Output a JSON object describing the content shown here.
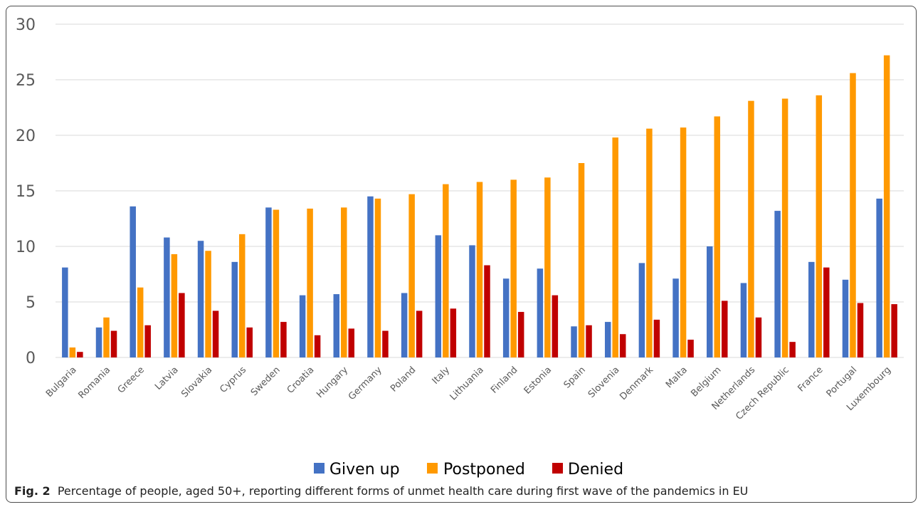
{
  "chart_data": {
    "type": "bar",
    "categories": [
      "Bulgaria",
      "Romania",
      "Greece",
      "Latvia",
      "Slovakia",
      "Cyprus",
      "Sweden",
      "Croatia",
      "Hungary",
      "Germany",
      "Poland",
      "Italy",
      "Lithuania",
      "Finland",
      "Estonia",
      "Spain",
      "Slovenia",
      "Denmark",
      "Malta",
      "Belgium",
      "Netherlands",
      "Czech Republic",
      "France",
      "Portugal",
      "Luxembourg"
    ],
    "series": [
      {
        "name": "Given up",
        "color": "#4472c4",
        "values": [
          8.1,
          2.7,
          13.6,
          10.8,
          10.5,
          8.6,
          13.5,
          5.6,
          5.7,
          14.5,
          5.8,
          11.0,
          10.1,
          7.1,
          8.0,
          2.8,
          3.2,
          8.5,
          7.1,
          10.0,
          6.7,
          13.2,
          8.6,
          7.0,
          14.3
        ]
      },
      {
        "name": "Postponed",
        "color": "#ff9900",
        "values": [
          0.9,
          3.6,
          6.3,
          9.3,
          9.6,
          11.1,
          13.3,
          13.4,
          13.5,
          14.3,
          14.7,
          15.6,
          15.8,
          16.0,
          16.2,
          17.5,
          19.8,
          20.6,
          20.7,
          21.7,
          23.1,
          23.3,
          23.6,
          25.6,
          27.2
        ]
      },
      {
        "name": "Denied",
        "color": "#c00000",
        "values": [
          0.5,
          2.4,
          2.9,
          5.8,
          4.2,
          2.7,
          3.2,
          2.0,
          2.6,
          2.4,
          4.2,
          4.4,
          8.3,
          4.1,
          5.6,
          2.9,
          2.1,
          3.4,
          1.6,
          5.1,
          3.6,
          1.4,
          8.1,
          4.9,
          4.8
        ]
      }
    ],
    "yticks": [
      "0",
      "5",
      "10",
      "15",
      "20",
      "25",
      "30"
    ],
    "ylim": [
      0,
      30
    ],
    "grid": true,
    "legend": "bottom"
  },
  "caption": {
    "label": "Fig. 2",
    "text": "Percentage of people, aged 50+, reporting different forms of unmet health care during first wave of the pandemics in EU"
  }
}
